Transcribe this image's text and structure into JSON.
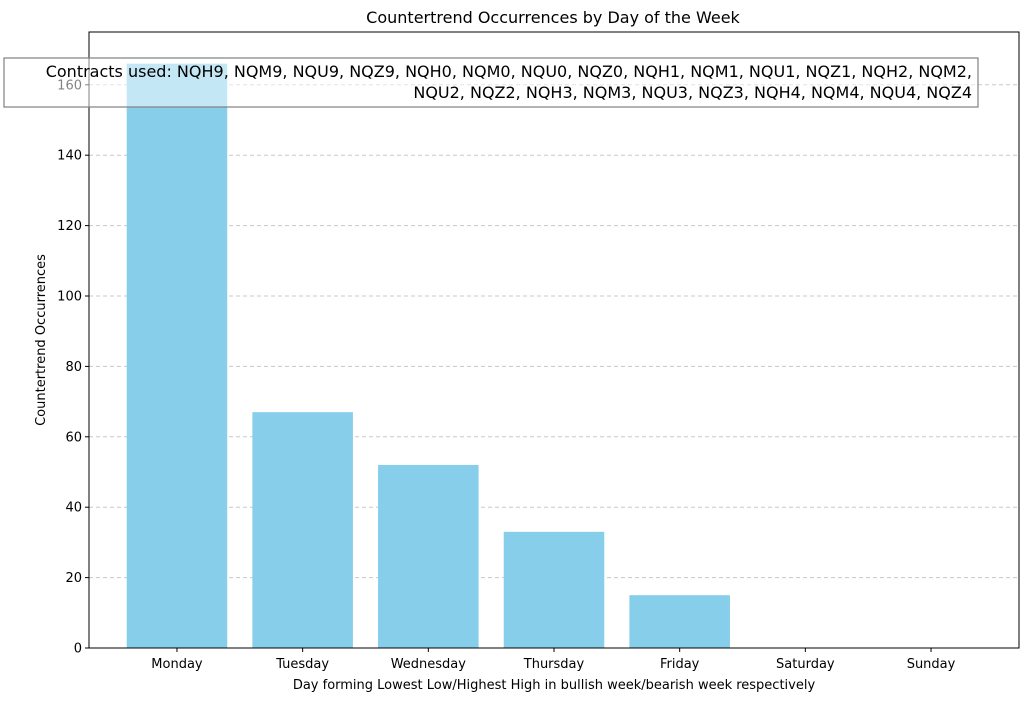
{
  "chart_data": {
    "type": "bar",
    "title": "Countertrend Occurrences by Day of the Week",
    "xlabel": "Day forming Lowest Low/Highest High in bullish week/bearish week respectively",
    "ylabel": "Countertrend Occurrences",
    "categories": [
      "Monday",
      "Tuesday",
      "Wednesday",
      "Thursday",
      "Friday",
      "Saturday",
      "Sunday"
    ],
    "values": [
      166,
      67,
      52,
      33,
      15,
      0,
      0
    ],
    "ylim": [
      0,
      175
    ],
    "yticks": [
      0,
      20,
      40,
      60,
      80,
      100,
      120,
      140,
      160
    ],
    "grid": "y-dashed",
    "bar_color": "#87ceeb",
    "annotation": {
      "lines": [
        "Contracts used: NQH9, NQM9, NQU9, NQZ9, NQH0, NQM0, NQU0, NQZ0, NQH1, NQM1, NQU1, NQZ1, NQH2, NQM2,",
        "NQU2, NQZ2, NQH3, NQM3, NQU3, NQZ3, NQH4, NQM4, NQU4, NQZ4"
      ],
      "placement": "top-right"
    }
  }
}
